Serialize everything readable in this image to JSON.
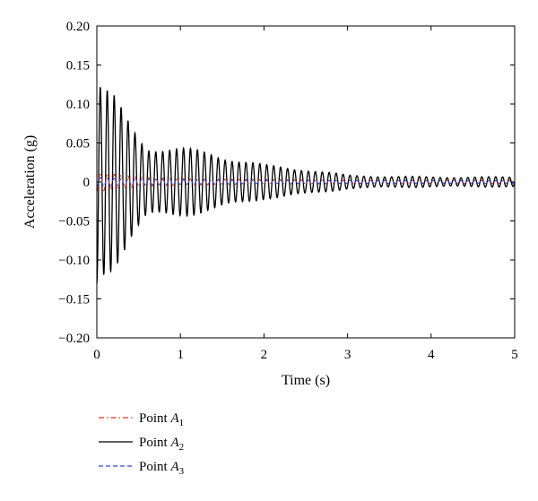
{
  "chart_data": {
    "type": "line",
    "xlabel": "Time (s)",
    "ylabel": "Acceleration (g)",
    "xlim": [
      0,
      5
    ],
    "ylim": [
      -0.2,
      0.2
    ],
    "x_ticks": [
      "0",
      "1",
      "2",
      "3",
      "4",
      "5"
    ],
    "y_ticks": [
      "0.20",
      "0.15",
      "0.10",
      "0.05",
      "0",
      "−0.05",
      "−0.10",
      "−0.15",
      "−0.20"
    ],
    "grid": false,
    "legend_position": "bottom-left",
    "oscillation_period_s": 0.083,
    "series": [
      {
        "name_base": "Point A",
        "name_subscript": "1",
        "color": "#d9381e",
        "dash": "6,3,1.5,3",
        "envelope": {
          "t": [
            0,
            0.2,
            0.5,
            1.0,
            2.0,
            3.0,
            5.0
          ],
          "amp": [
            0.012,
            0.01,
            0.006,
            0.004,
            0.003,
            0.002,
            0.002
          ]
        }
      },
      {
        "name_base": "Point A",
        "name_subscript": "2",
        "color": "#000000",
        "dash": "",
        "envelope": {
          "t": [
            0,
            0.05,
            0.2,
            0.4,
            0.6,
            1.0,
            1.4,
            2.0,
            2.5,
            3.0,
            4.0,
            5.0
          ],
          "amp": [
            0.13,
            0.115,
            0.1,
            0.07,
            0.045,
            0.04,
            0.035,
            0.02,
            0.016,
            0.008,
            0.006,
            0.006
          ]
        }
      },
      {
        "name_base": "Point A",
        "name_subscript": "3",
        "color": "#2b4bd6",
        "dash": "5,3",
        "envelope": {
          "t": [
            0,
            0.3,
            1.0,
            2.0,
            5.0
          ],
          "amp": [
            0.006,
            0.004,
            0.003,
            0.002,
            0.0015
          ]
        }
      }
    ]
  }
}
